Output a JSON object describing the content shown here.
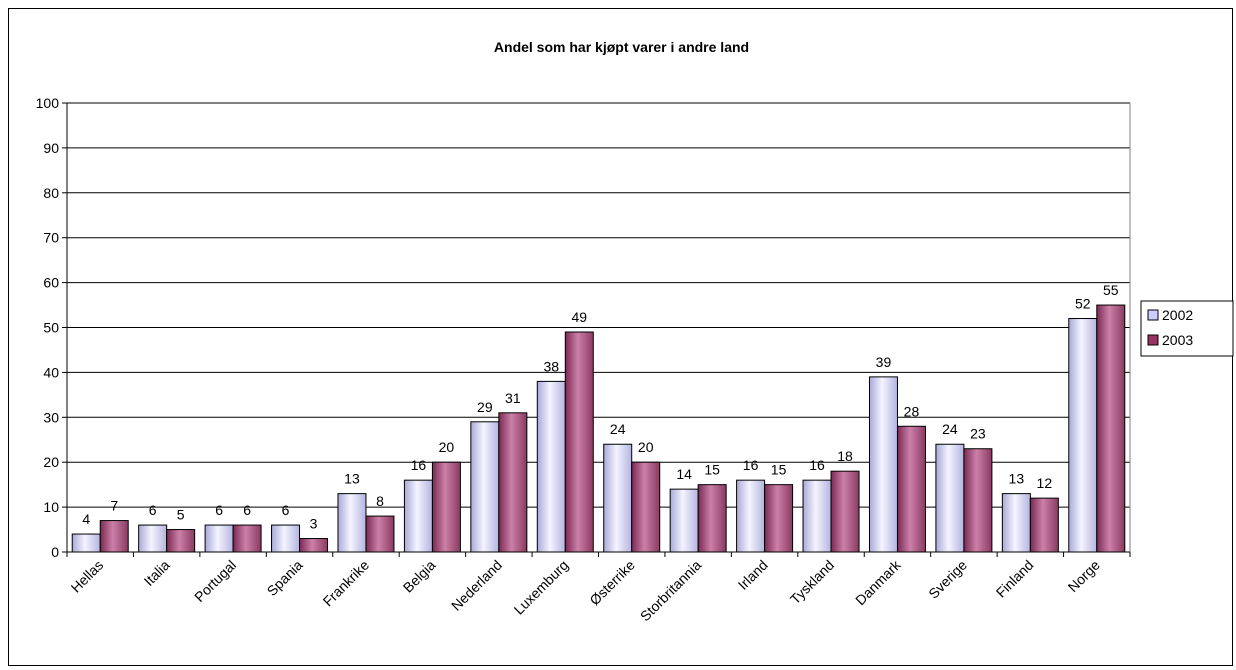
{
  "chart_data": {
    "type": "bar",
    "title": "Andel som har kjøpt varer i andre land",
    "xlabel": "",
    "ylabel": "",
    "ylim": [
      0,
      100
    ],
    "yticks": [
      0,
      10,
      20,
      30,
      40,
      50,
      60,
      70,
      80,
      90,
      100
    ],
    "categories": [
      "Hellas",
      "Italia",
      "Portugal",
      "Spania",
      "Frankrike",
      "Belgia",
      "Nederland",
      "Luxemburg",
      "Østerrike",
      "Storbritannia",
      "Irland",
      "Tyskland",
      "Danmark",
      "Sverige",
      "Finland",
      "Norge"
    ],
    "series": [
      {
        "name": "2002",
        "color": "#ccccff",
        "values": [
          4,
          6,
          6,
          6,
          13,
          16,
          29,
          38,
          24,
          14,
          16,
          16,
          39,
          24,
          13,
          52
        ]
      },
      {
        "name": "2003",
        "color": "#993366",
        "values": [
          7,
          5,
          6,
          3,
          8,
          20,
          31,
          49,
          20,
          15,
          15,
          18,
          28,
          23,
          12,
          55
        ]
      }
    ],
    "grid": true,
    "legend_position": "right"
  }
}
